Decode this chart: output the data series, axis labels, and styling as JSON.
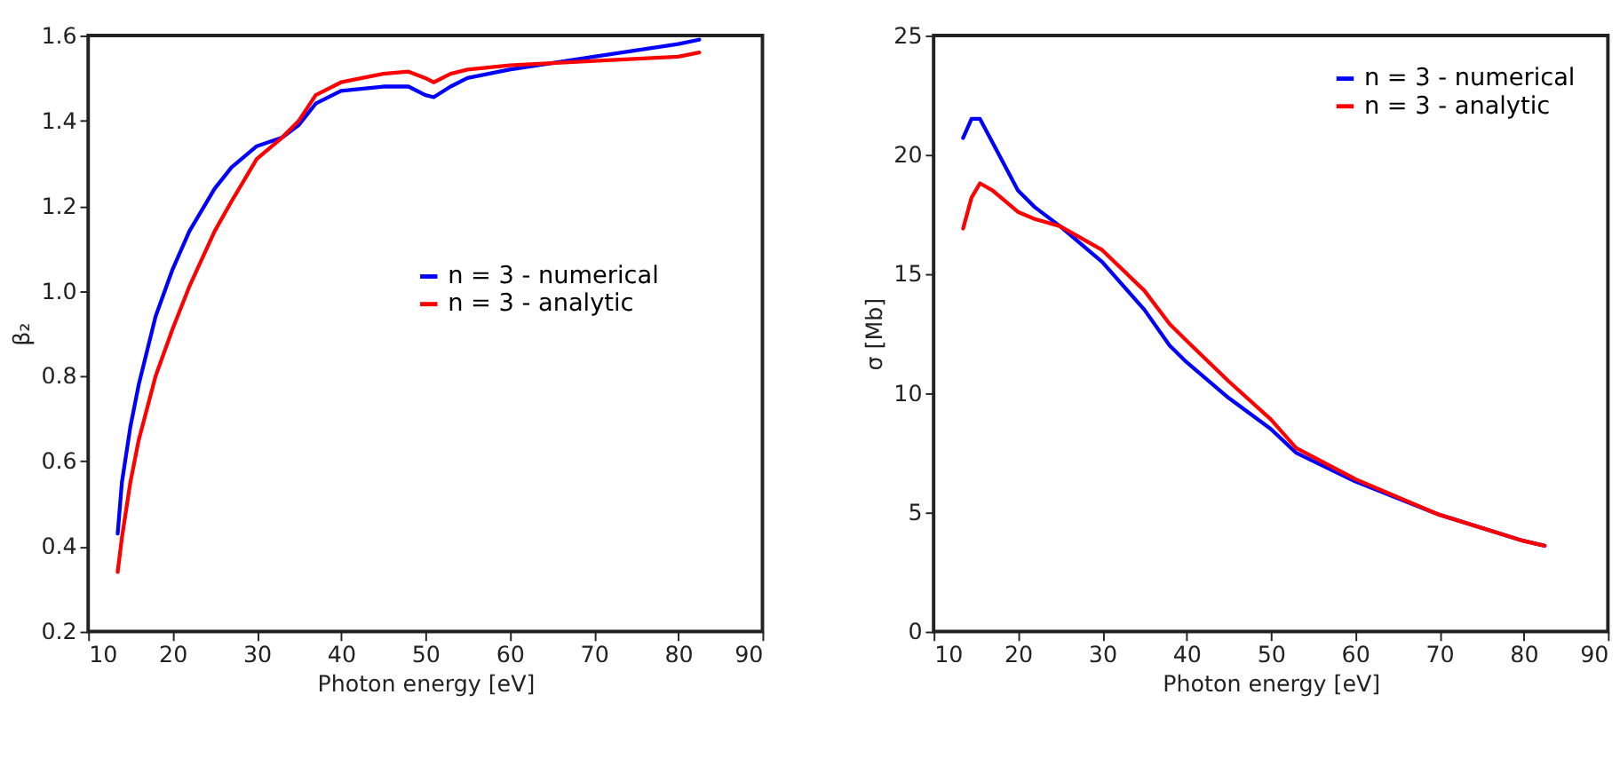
{
  "chart_data": [
    {
      "type": "line",
      "xlabel": "Photon energy [eV]",
      "ylabel": "β₂",
      "xlim": [
        10,
        90
      ],
      "xticks": [
        10,
        20,
        30,
        40,
        50,
        60,
        70,
        80,
        90
      ],
      "ylim": [
        0.2,
        1.6
      ],
      "yticks": [
        0.2,
        0.4,
        0.6,
        0.8,
        {
          "value": 1.0,
          "label": "1.0"
        },
        1.2,
        1.4,
        1.6
      ],
      "grid": false,
      "legend": "right",
      "line_style": "solid",
      "marker": "none",
      "x": [
        13.5,
        14,
        15,
        16,
        18,
        20,
        22,
        25,
        27,
        30,
        33,
        35,
        37,
        40,
        45,
        48,
        50,
        51,
        53,
        55,
        60,
        70,
        80,
        82.5
      ],
      "series": [
        {
          "name": "n = 3 - numerical",
          "color": "#0000ff",
          "values": [
            0.43,
            0.55,
            0.68,
            0.78,
            0.94,
            1.05,
            1.14,
            1.24,
            1.29,
            1.34,
            1.36,
            1.39,
            1.44,
            1.47,
            1.48,
            1.48,
            1.46,
            1.455,
            1.48,
            1.5,
            1.52,
            1.55,
            1.58,
            1.59
          ]
        },
        {
          "name": "n = 3 - analytic",
          "color": "#ff0000",
          "values": [
            0.34,
            0.42,
            0.55,
            0.65,
            0.8,
            0.91,
            1.01,
            1.14,
            1.21,
            1.31,
            1.36,
            1.4,
            1.46,
            1.49,
            1.51,
            1.515,
            1.5,
            1.49,
            1.51,
            1.52,
            1.53,
            1.54,
            1.55,
            1.56
          ]
        }
      ]
    },
    {
      "type": "line",
      "xlabel": "Photon energy [eV]",
      "ylabel": "σ [Mb]",
      "xlim": [
        10,
        90
      ],
      "xticks": [
        10,
        20,
        30,
        40,
        50,
        60,
        70,
        80,
        90
      ],
      "ylim": [
        0,
        25
      ],
      "yticks": [
        0,
        5,
        10,
        15,
        20,
        25
      ],
      "grid": false,
      "legend": "top right",
      "line_style": "solid",
      "marker": "none",
      "x": [
        13.5,
        14.5,
        15.5,
        17,
        20,
        22,
        25,
        30,
        35,
        38,
        40,
        45,
        50,
        53,
        60,
        70,
        80,
        82.5
      ],
      "series": [
        {
          "name": "n = 3 - numerical",
          "color": "#0000ff",
          "values": [
            20.7,
            21.5,
            21.5,
            20.5,
            18.5,
            17.8,
            17.0,
            15.5,
            13.5,
            12.0,
            11.3,
            9.8,
            8.5,
            7.5,
            6.3,
            4.9,
            3.8,
            3.6
          ]
        },
        {
          "name": "n = 3 - analytic",
          "color": "#ff0000",
          "values": [
            16.9,
            18.2,
            18.8,
            18.5,
            17.6,
            17.3,
            17.0,
            16.0,
            14.3,
            12.9,
            12.2,
            10.5,
            8.9,
            7.7,
            6.4,
            4.9,
            3.8,
            3.6
          ]
        }
      ]
    }
  ]
}
